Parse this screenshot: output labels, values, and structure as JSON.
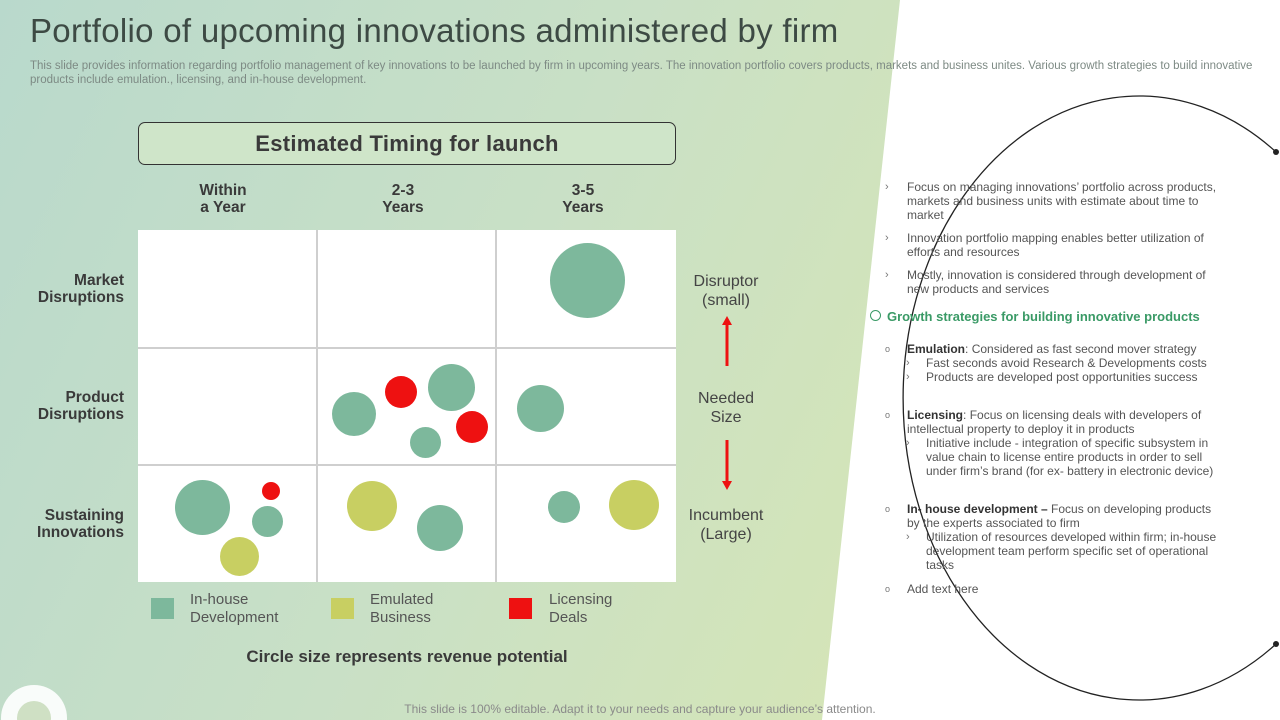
{
  "title": "Portfolio of upcoming innovations administered by firm",
  "subtitle": "This slide provides information regarding portfolio management of key innovations to be launched by firm in upcoming years. The innovation portfolio covers products, markets and business unites. Various growth strategies to build innovative products include emulation., licensing, and in-house development.",
  "timing_header": "Estimated Timing for launch",
  "columns": [
    "Within a Year",
    "2-3 Years",
    "3-5 Years"
  ],
  "columns_lines": [
    [
      "Within",
      "a Year"
    ],
    [
      "2-3",
      "Years"
    ],
    [
      "3-5",
      "Years"
    ]
  ],
  "rows": [
    [
      "Market",
      "Disruptions"
    ],
    [
      "Product",
      "Disruptions"
    ],
    [
      "Sustaining",
      "Innovations"
    ]
  ],
  "legend": [
    {
      "line1": "In-house",
      "line2": "Development",
      "color": "#7db89c"
    },
    {
      "line1": "Emulated",
      "line2": "Business",
      "color": "#c8cf62"
    },
    {
      "line1": "Licensing",
      "line2": "Deals",
      "color": "#ee1111"
    }
  ],
  "footer_note": "Circle size represents revenue potential",
  "side_labels": {
    "top": [
      "Disruptor",
      "(small)"
    ],
    "middle": [
      "Needed",
      "Size"
    ],
    "bottom": [
      "Incumbent",
      "(Large)"
    ]
  },
  "right_panel": {
    "bullets": [
      "Focus on managing innovations’ portfolio across products, markets and business units with estimate about time to market",
      "Innovation portfolio mapping enables better utilization of efforts and resources",
      "Mostly, innovation is considered through development of new products and services"
    ],
    "growth_heading": "Growth strategies for building innovative products",
    "strategies": [
      {
        "name": "Emulation",
        "sep": ":",
        "text": " Considered as fast second mover strategy",
        "subs": [
          "Fast seconds avoid Research & Developments costs",
          "Products are developed post opportunities success"
        ]
      },
      {
        "name": "Licensing",
        "sep": ":",
        "text": " Focus on licensing deals with developers of intellectual property to deploy it in products",
        "subs": [
          "Initiative include - integration of specific subsystem in value chain to license entire products in order to sell under firm’s brand (for ex- battery in electronic device)"
        ]
      },
      {
        "name": "In- house development –",
        "sep": "",
        "text": " Focus on developing products by the experts associated to firm",
        "subs": [
          "Utilization of resources developed within firm; in-house development team perform specific set of operational tasks"
        ]
      }
    ],
    "add_text": "Add text here"
  },
  "bottom_note": "This slide is 100% editable. Adapt it to your needs and capture your audience’s attention.",
  "colors": {
    "inhouse": "#7db89c",
    "emulated": "#c8cf62",
    "licensing": "#ee1111",
    "accent_green": "#3a9a66"
  }
}
